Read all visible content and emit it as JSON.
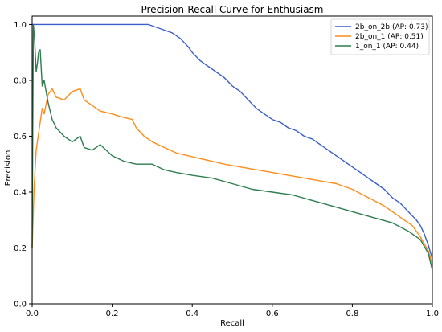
{
  "chart_data": {
    "type": "line",
    "title": "Precision-Recall Curve for Enthusiasm",
    "xlabel": "Recall",
    "ylabel": "Precision",
    "xlim": [
      0,
      1
    ],
    "ylim": [
      0,
      1.03
    ],
    "xticks": [
      "0.0",
      "0.2",
      "0.4",
      "0.6",
      "0.8",
      "1.0"
    ],
    "yticks": [
      "0.0",
      "0.2",
      "0.4",
      "0.6",
      "0.8",
      "1.0"
    ],
    "grid": false,
    "legend_position": "top-right",
    "series": [
      {
        "name": "2b_on_2b (AP: 0.73)",
        "color": "#3a5fcd",
        "x": [
          0.0,
          0.05,
          0.1,
          0.15,
          0.2,
          0.25,
          0.29,
          0.31,
          0.33,
          0.35,
          0.37,
          0.39,
          0.4,
          0.42,
          0.44,
          0.46,
          0.48,
          0.5,
          0.52,
          0.54,
          0.56,
          0.58,
          0.6,
          0.62,
          0.64,
          0.66,
          0.68,
          0.7,
          0.72,
          0.74,
          0.76,
          0.78,
          0.8,
          0.82,
          0.84,
          0.86,
          0.88,
          0.9,
          0.92,
          0.94,
          0.96,
          0.97,
          0.98,
          0.99,
          1.0
        ],
        "y": [
          1.0,
          1.0,
          1.0,
          1.0,
          1.0,
          1.0,
          1.0,
          0.99,
          0.98,
          0.97,
          0.95,
          0.92,
          0.9,
          0.87,
          0.85,
          0.83,
          0.81,
          0.78,
          0.76,
          0.73,
          0.7,
          0.68,
          0.66,
          0.65,
          0.63,
          0.62,
          0.6,
          0.59,
          0.57,
          0.55,
          0.53,
          0.51,
          0.49,
          0.47,
          0.45,
          0.43,
          0.41,
          0.38,
          0.36,
          0.33,
          0.3,
          0.28,
          0.25,
          0.21,
          0.16
        ]
      },
      {
        "name": "2b_on_1 (AP: 0.51)",
        "color": "#ff8c1a",
        "x": [
          0.0,
          0.005,
          0.01,
          0.015,
          0.02,
          0.025,
          0.03,
          0.04,
          0.05,
          0.06,
          0.08,
          0.1,
          0.12,
          0.13,
          0.15,
          0.17,
          0.2,
          0.22,
          0.25,
          0.26,
          0.28,
          0.3,
          0.33,
          0.36,
          0.39,
          0.42,
          0.45,
          0.48,
          0.52,
          0.56,
          0.6,
          0.64,
          0.68,
          0.72,
          0.76,
          0.8,
          0.84,
          0.88,
          0.92,
          0.95,
          0.97,
          0.99,
          1.0
        ],
        "y": [
          0.2,
          0.42,
          0.55,
          0.6,
          0.65,
          0.7,
          0.68,
          0.75,
          0.77,
          0.74,
          0.73,
          0.76,
          0.77,
          0.73,
          0.71,
          0.69,
          0.68,
          0.67,
          0.66,
          0.63,
          0.6,
          0.58,
          0.56,
          0.54,
          0.53,
          0.52,
          0.51,
          0.5,
          0.49,
          0.48,
          0.47,
          0.46,
          0.45,
          0.44,
          0.43,
          0.41,
          0.38,
          0.35,
          0.31,
          0.28,
          0.24,
          0.19,
          0.14
        ]
      },
      {
        "name": "1_on_1 (AP: 0.44)",
        "color": "#2e7d4f",
        "x": [
          0.0,
          0.003,
          0.006,
          0.01,
          0.013,
          0.016,
          0.02,
          0.025,
          0.03,
          0.04,
          0.05,
          0.06,
          0.08,
          0.1,
          0.12,
          0.13,
          0.15,
          0.17,
          0.2,
          0.23,
          0.26,
          0.3,
          0.33,
          0.36,
          0.4,
          0.45,
          0.5,
          0.55,
          0.6,
          0.65,
          0.7,
          0.75,
          0.8,
          0.85,
          0.9,
          0.94,
          0.97,
          0.99,
          1.0
        ],
        "y": [
          0.2,
          1.0,
          0.95,
          0.83,
          0.86,
          0.9,
          0.91,
          0.78,
          0.8,
          0.72,
          0.66,
          0.63,
          0.6,
          0.58,
          0.6,
          0.56,
          0.55,
          0.57,
          0.53,
          0.51,
          0.5,
          0.5,
          0.48,
          0.47,
          0.46,
          0.45,
          0.43,
          0.41,
          0.4,
          0.39,
          0.37,
          0.35,
          0.33,
          0.31,
          0.29,
          0.26,
          0.23,
          0.18,
          0.12
        ]
      }
    ]
  }
}
